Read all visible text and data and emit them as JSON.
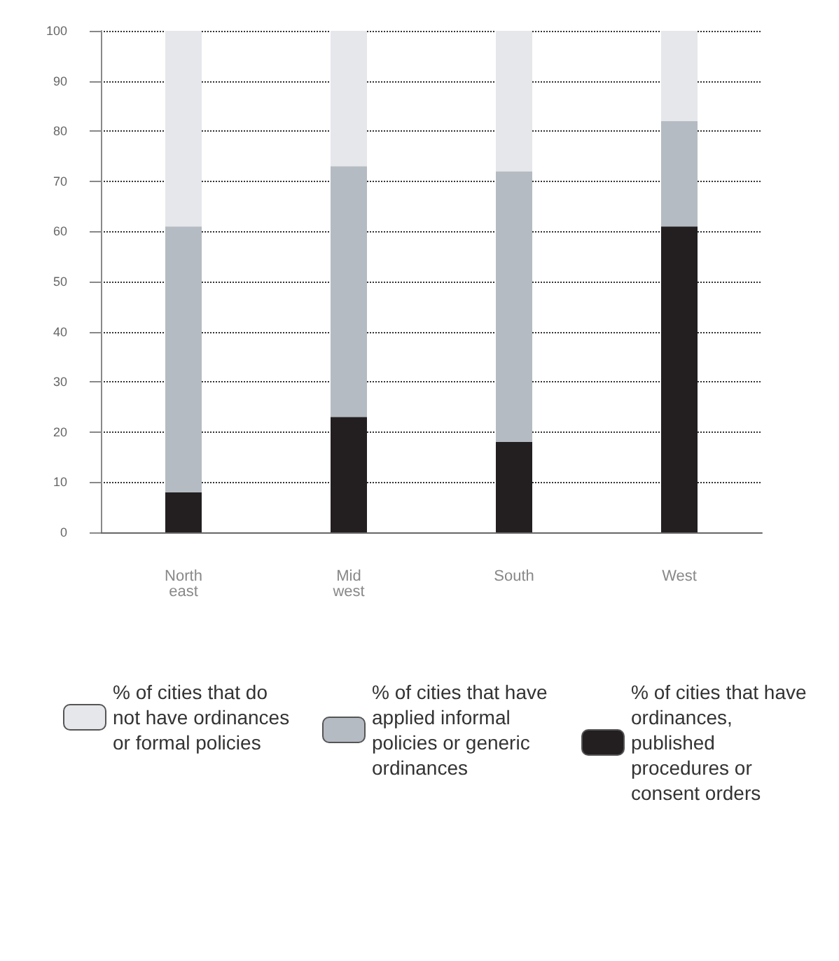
{
  "chart_data": {
    "type": "bar",
    "stacked": true,
    "categories": [
      "North east",
      "Mid west",
      "South",
      "West"
    ],
    "series": [
      {
        "name": "% of cities that have ordinances, published procedures or consent orders",
        "color": "#231f20",
        "values": [
          8,
          23,
          18,
          61
        ]
      },
      {
        "name": "% of cities that have applied informal policies or generic ordinances",
        "color": "#b5bbc2",
        "values": [
          53,
          50,
          54,
          21
        ]
      },
      {
        "name": "% of cities that do not have ordinances or formal policies",
        "color": "#e6e7eb",
        "values": [
          39,
          27,
          28,
          18
        ]
      }
    ],
    "ylim": [
      0,
      100
    ],
    "yticks": [
      0,
      10,
      20,
      30,
      40,
      50,
      60,
      70,
      80,
      90,
      100
    ],
    "grid": "y",
    "legend": "bottom"
  }
}
